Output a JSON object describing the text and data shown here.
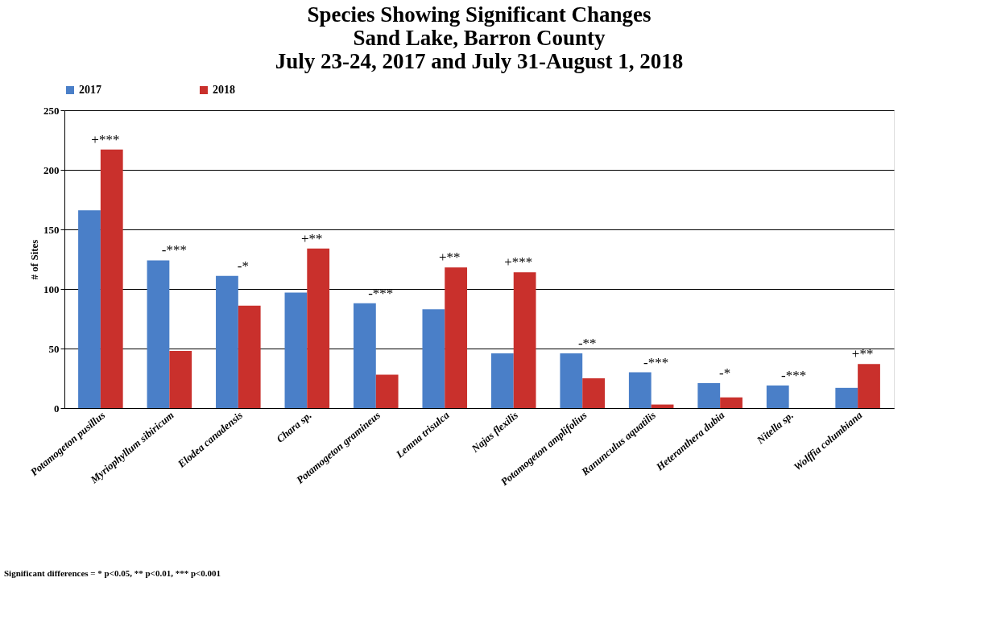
{
  "chart_data": {
    "type": "bar",
    "title": "Species Showing Significant Changes\nSand Lake, Barron County\nJuly 23-24, 2017 and July 31-August 1, 2018",
    "ylabel": "# of Sites",
    "categories": [
      "Potamogeton pusillus",
      "Myriophyllum sibiricum",
      "Elodea canadensis",
      "Chara sp.",
      "Potamogeton gramineus",
      "Lemna trisulca",
      "Najas flexilis",
      "Potamogeton amplifolius",
      "Ranunculus aquatilis",
      "Heteranthera dubia",
      "Nitella sp.",
      "Wolffia columbiana"
    ],
    "series": [
      {
        "name": "2017",
        "color": "#4a7fc8",
        "values": [
          166,
          124,
          111,
          97,
          88,
          83,
          46,
          46,
          30,
          21,
          19,
          17
        ]
      },
      {
        "name": "2018",
        "color": "#c9302c",
        "values": [
          217,
          48,
          86,
          134,
          28,
          118,
          114,
          25,
          3,
          9,
          0,
          37
        ]
      }
    ],
    "ylim": [
      0,
      250
    ],
    "yticks": [
      0,
      50,
      100,
      150,
      200,
      250
    ],
    "grid": "y",
    "legend": "top",
    "annotations": [
      {
        "text": "+***",
        "x": "Potamogeton pusillus",
        "y": 217
      },
      {
        "text": "-***",
        "x": "Myriophyllum sibiricum",
        "y": 124
      },
      {
        "text": "-*",
        "x": "Elodea canadensis",
        "y": 111
      },
      {
        "text": "+**",
        "x": "Chara sp.",
        "y": 134
      },
      {
        "text": "-***",
        "x": "Potamogeton gramineus",
        "y": 88
      },
      {
        "text": "+**",
        "x": "Lemna trisulca",
        "y": 118
      },
      {
        "text": "+***",
        "x": "Najas flexilis",
        "y": 114
      },
      {
        "text": "-**",
        "x": "Potamogeton amplifolius",
        "y": 46
      },
      {
        "text": "-***",
        "x": "Ranunculus aquatilis",
        "y": 30
      },
      {
        "text": "-*",
        "x": "Heteranthera dubia",
        "y": 21
      },
      {
        "text": "-***",
        "x": "Nitella sp.",
        "y": 19
      },
      {
        "text": "+**",
        "x": "Wolffia columbiana",
        "y": 37
      },
      "Significant differences = * p<0.05, ** p<0.01, *** p<0.001"
    ]
  }
}
